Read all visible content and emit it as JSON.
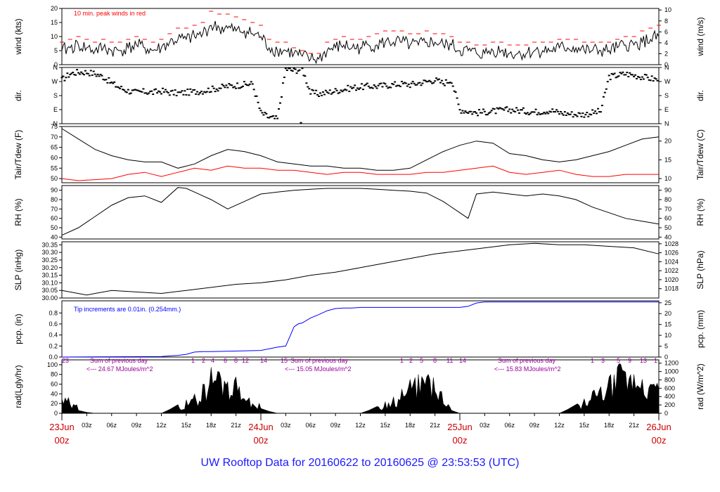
{
  "footer": {
    "title": "UW Rooftop Data for 20160622  to  20160625 @ 23:53:53  (UTC)"
  },
  "chart_data": [
    {
      "id": "wind",
      "type": "line",
      "ylabel_left": "wind (kts)",
      "ylabel_right": "wind (m/s)",
      "ylim": [
        0,
        20
      ],
      "yticks": [
        0,
        5,
        10,
        15,
        20
      ],
      "right_ylim": [
        0,
        10.3
      ],
      "right_yticks": [
        0,
        2,
        4,
        6,
        8,
        10
      ],
      "annotation": "10 min. peak winds in red",
      "series": [
        {
          "name": "wind speed (kts)",
          "color": "#000000",
          "x_hours": [
            0,
            1,
            2,
            3,
            4,
            5,
            6,
            7,
            8,
            9,
            10,
            11,
            12,
            13,
            14,
            15,
            16,
            17,
            18,
            19,
            20,
            21,
            22,
            23,
            24,
            25,
            26,
            27,
            28,
            29,
            30,
            31,
            32,
            33,
            34,
            35,
            36,
            37,
            38,
            39,
            40,
            41,
            42,
            43,
            44,
            45,
            46,
            47,
            48,
            49,
            50,
            51,
            52,
            53,
            54,
            55,
            56,
            57,
            58,
            59,
            60,
            61,
            62,
            63,
            64,
            65,
            66,
            67,
            68,
            69,
            70,
            71,
            72
          ],
          "values": [
            5,
            6,
            7,
            6,
            5,
            6,
            5,
            5,
            6,
            7,
            6,
            5,
            6,
            8,
            9,
            9,
            10,
            11,
            14,
            13,
            13,
            12,
            12,
            11,
            10,
            6,
            5,
            5,
            4,
            3,
            2,
            2,
            5,
            6,
            7,
            6,
            6,
            7,
            7,
            8,
            8,
            8,
            7,
            7,
            8,
            8,
            7,
            7,
            5,
            5,
            4,
            4,
            5,
            5,
            4,
            4,
            4,
            5,
            5,
            5,
            6,
            6,
            6,
            5,
            5,
            5,
            5,
            6,
            7,
            7,
            8,
            9,
            10
          ]
        },
        {
          "name": "10 min peak (kts)",
          "color": "#ff0000",
          "x_hours": [
            0,
            1,
            2,
            3,
            4,
            5,
            6,
            7,
            8,
            9,
            10,
            11,
            12,
            13,
            14,
            15,
            16,
            17,
            18,
            19,
            20,
            21,
            22,
            23,
            24,
            25,
            26,
            27,
            28,
            29,
            30,
            31,
            32,
            33,
            34,
            35,
            36,
            37,
            38,
            39,
            40,
            41,
            42,
            43,
            44,
            45,
            46,
            47,
            48,
            49,
            50,
            51,
            52,
            53,
            54,
            55,
            56,
            57,
            58,
            59,
            60,
            61,
            62,
            63,
            64,
            65,
            66,
            67,
            68,
            69,
            70,
            71,
            72
          ],
          "values": [
            8,
            9,
            10,
            9,
            8,
            9,
            8,
            8,
            9,
            10,
            9,
            8,
            9,
            11,
            13,
            13,
            14,
            15,
            19,
            18,
            18,
            17,
            16,
            15,
            14,
            9,
            8,
            8,
            6,
            5,
            4,
            4,
            8,
            9,
            10,
            9,
            9,
            10,
            11,
            12,
            12,
            12,
            11,
            11,
            12,
            11,
            11,
            10,
            8,
            8,
            7,
            7,
            8,
            8,
            7,
            7,
            7,
            8,
            8,
            8,
            9,
            9,
            9,
            8,
            8,
            8,
            8,
            9,
            10,
            10,
            12,
            13,
            14
          ]
        }
      ]
    },
    {
      "id": "dir",
      "type": "scatter",
      "ylabel_left": "dir.",
      "ylabel_right": "dir.",
      "ylim": [
        0,
        360
      ],
      "ytick_labels": [
        "N",
        "E",
        "S",
        "W",
        "N"
      ],
      "series": [
        {
          "name": "wind direction (deg)",
          "color": "#000000",
          "x_hours": [
            0,
            1,
            2,
            3,
            4,
            5,
            6,
            7,
            8,
            9,
            10,
            11,
            12,
            13,
            14,
            15,
            16,
            17,
            18,
            19,
            20,
            21,
            22,
            23,
            24,
            25,
            26,
            27,
            28,
            29,
            30,
            31,
            32,
            33,
            34,
            35,
            36,
            37,
            38,
            39,
            40,
            41,
            42,
            43,
            44,
            45,
            46,
            47,
            48,
            49,
            50,
            51,
            52,
            53,
            54,
            55,
            56,
            57,
            58,
            59,
            60,
            61,
            62,
            63,
            64,
            65,
            66,
            67,
            68,
            69,
            70,
            71,
            72
          ],
          "values": [
            280,
            320,
            330,
            330,
            320,
            300,
            260,
            230,
            210,
            200,
            205,
            200,
            210,
            200,
            195,
            200,
            205,
            210,
            220,
            230,
            240,
            245,
            250,
            255,
            70,
            40,
            30,
            350,
            340,
            350,
            200,
            190,
            200,
            210,
            220,
            230,
            235,
            240,
            240,
            245,
            250,
            255,
            250,
            260,
            270,
            280,
            260,
            280,
            90,
            80,
            70,
            75,
            80,
            85,
            90,
            85,
            80,
            75,
            80,
            85,
            70,
            65,
            60,
            60,
            70,
            80,
            300,
            310,
            320,
            310,
            300,
            290,
            280
          ]
        }
      ]
    },
    {
      "id": "temp",
      "type": "line",
      "ylabel_left": "Tair/Tdew (F)",
      "ylabel_right": "Tair/Tdew (C)",
      "ylim": [
        48,
        75
      ],
      "yticks": [
        50,
        55,
        60,
        65,
        70,
        75
      ],
      "right_ylim_c": [
        8.9,
        23.9
      ],
      "right_yticks": [
        10,
        15,
        20
      ],
      "series": [
        {
          "name": "Tair (F)",
          "color": "#000000",
          "x_hours": [
            0,
            2,
            4,
            6,
            8,
            10,
            12,
            14,
            16,
            18,
            20,
            22,
            24,
            26,
            28,
            30,
            32,
            34,
            36,
            38,
            40,
            42,
            44,
            46,
            48,
            50,
            52,
            54,
            56,
            58,
            60,
            62,
            64,
            66,
            68,
            70,
            72
          ],
          "values": [
            74,
            69,
            64,
            61,
            59,
            58,
            58,
            55,
            57,
            61,
            64,
            63,
            61,
            58,
            57,
            56,
            56,
            55,
            55,
            54,
            54,
            55,
            59,
            63,
            66,
            68,
            67,
            62,
            61,
            59,
            58,
            59,
            61,
            63,
            66,
            69,
            70
          ]
        },
        {
          "name": "Tdew (F)",
          "color": "#ff0000",
          "x_hours": [
            0,
            2,
            4,
            6,
            8,
            10,
            12,
            14,
            16,
            18,
            20,
            22,
            24,
            26,
            28,
            30,
            32,
            34,
            36,
            38,
            40,
            42,
            44,
            46,
            48,
            50,
            52,
            54,
            56,
            58,
            60,
            62,
            64,
            66,
            68,
            70,
            72
          ],
          "values": [
            50,
            49,
            49.5,
            50,
            52,
            53,
            51,
            53,
            55,
            54,
            56,
            55,
            55,
            54,
            54,
            53,
            52,
            53,
            53,
            52,
            52,
            52,
            53,
            53,
            54,
            55,
            56,
            53,
            52,
            53,
            54,
            52,
            51,
            51,
            52,
            52,
            52
          ]
        }
      ]
    },
    {
      "id": "rh",
      "type": "line",
      "ylabel_left": "RH (%)",
      "ylabel_right": "RH (%)",
      "ylim": [
        38,
        95
      ],
      "yticks": [
        40,
        50,
        60,
        70,
        80,
        90
      ],
      "series": [
        {
          "name": "RH (%)",
          "color": "#000000",
          "x_hours": [
            0,
            2,
            4,
            6,
            8,
            10,
            12,
            14,
            15,
            16,
            17,
            18,
            20,
            22,
            24,
            26,
            28,
            30,
            32,
            34,
            36,
            38,
            40,
            42,
            44,
            46,
            48,
            49,
            50,
            52,
            54,
            56,
            58,
            60,
            62,
            64,
            66,
            68,
            70,
            72
          ],
          "values": [
            42,
            50,
            62,
            74,
            82,
            84,
            77,
            93,
            92,
            88,
            84,
            80,
            70,
            78,
            86,
            88,
            90,
            91,
            92,
            92,
            92,
            91,
            90,
            89,
            87,
            78,
            66,
            60,
            86,
            88,
            86,
            84,
            86,
            84,
            80,
            72,
            66,
            60,
            57,
            54
          ]
        }
      ]
    },
    {
      "id": "slp",
      "type": "line",
      "ylabel_left": "SLP (inHg)",
      "ylabel_right": "SLP (hPa)",
      "ylim": [
        30.0,
        30.37
      ],
      "yticks": [
        30.0,
        30.05,
        30.1,
        30.15,
        30.2,
        30.25,
        30.3,
        30.35
      ],
      "right_yticks": [
        1018,
        1020,
        1022,
        1024,
        1026,
        1028
      ],
      "series": [
        {
          "name": "SLP (inHg)",
          "color": "#000000",
          "x_hours": [
            0,
            3,
            6,
            9,
            12,
            15,
            18,
            21,
            24,
            27,
            30,
            33,
            36,
            39,
            42,
            45,
            48,
            51,
            54,
            57,
            60,
            63,
            66,
            69,
            72
          ],
          "values": [
            30.05,
            30.02,
            30.05,
            30.04,
            30.03,
            30.05,
            30.07,
            30.09,
            30.1,
            30.12,
            30.15,
            30.17,
            30.2,
            30.23,
            30.26,
            30.29,
            30.31,
            30.33,
            30.35,
            30.36,
            30.35,
            30.35,
            30.34,
            30.33,
            30.29
          ]
        }
      ]
    },
    {
      "id": "pcp",
      "type": "line",
      "ylabel_left": "pcp. (in)",
      "ylabel_right": "pcp. (mm)",
      "ylim": [
        0,
        1.02
      ],
      "yticks": [
        0.0,
        0.2,
        0.4,
        0.6,
        0.8
      ],
      "right_yticks": [
        0,
        5,
        10,
        15,
        20,
        25
      ],
      "annotation": "Tip increments are 0.01in. (0.254mm.)",
      "series": [
        {
          "name": "cumulative precipitation (in)",
          "color": "#0000ff",
          "x_hours": [
            0,
            12,
            13,
            14,
            15,
            16,
            17,
            18,
            24,
            25,
            26,
            27,
            28,
            28.5,
            29,
            30,
            31,
            32,
            33,
            34,
            35,
            36,
            48,
            49,
            50,
            51,
            52,
            72
          ],
          "values": [
            0,
            0.01,
            0.02,
            0.03,
            0.05,
            0.09,
            0.1,
            0.1,
            0.12,
            0.15,
            0.18,
            0.2,
            0.55,
            0.6,
            0.62,
            0.71,
            0.77,
            0.84,
            0.88,
            0.89,
            0.89,
            0.9,
            0.9,
            0.92,
            0.98,
            1.0,
            1.0,
            1.0
          ]
        }
      ]
    },
    {
      "id": "rad",
      "type": "area",
      "ylabel_left": "rad(Lgly/hr)",
      "ylabel_right": "rad (W/m^2)",
      "ylim": [
        0,
        110
      ],
      "yticks": [
        0,
        20,
        40,
        60,
        80,
        100
      ],
      "right_yticks": [
        0,
        200,
        400,
        600,
        800,
        1000,
        1200
      ],
      "annotations": [
        "Sum of previous day",
        "<--- 24.67 MJoules/m^2",
        "Sum of previous day",
        "<--- 15.05 MJoules/m^2",
        "Sum of previous day",
        "<--- 15.83 MJoules/m^2"
      ],
      "hour_marks": [
        "23",
        "1",
        "2",
        "4",
        "6",
        "8",
        "12",
        "14",
        "15",
        "1",
        "2",
        "5",
        "8",
        "11",
        "14",
        "1",
        "3",
        "5",
        "9",
        "13",
        "1"
      ],
      "series": [
        {
          "name": "solar radiation (Lgly/hr)",
          "color": "#000000",
          "x_hours": [
            0,
            1,
            2,
            3,
            4,
            12,
            13,
            14,
            15,
            16,
            17,
            18,
            19,
            20,
            21,
            22,
            23,
            24,
            25,
            26,
            36,
            37,
            38,
            39,
            40,
            41,
            42,
            43,
            44,
            45,
            46,
            47,
            48,
            49,
            50,
            60,
            61,
            62,
            63,
            64,
            65,
            66,
            67,
            68,
            69,
            70,
            71,
            72
          ],
          "values": [
            30,
            18,
            6,
            2,
            0,
            0,
            8,
            18,
            28,
            40,
            60,
            95,
            85,
            65,
            75,
            30,
            20,
            10,
            4,
            0,
            0,
            6,
            14,
            24,
            34,
            50,
            70,
            80,
            75,
            45,
            20,
            6,
            0,
            0,
            0,
            0,
            8,
            18,
            30,
            45,
            55,
            75,
            95,
            85,
            80,
            70,
            60,
            50
          ]
        }
      ]
    }
  ],
  "time_axis": {
    "small_labels": [
      "03z",
      "06z",
      "09z",
      "12z",
      "15z",
      "18z",
      "21z",
      "03z",
      "06z",
      "09z",
      "12z",
      "15z",
      "18z",
      "21z",
      "03z",
      "06z",
      "09z",
      "12z",
      "15z",
      "18z",
      "21z"
    ],
    "day_labels": [
      {
        "date": "23Jun",
        "hour": "00z"
      },
      {
        "date": "24Jun",
        "hour": "00z"
      },
      {
        "date": "25Jun",
        "hour": "00z"
      },
      {
        "date": "26Jun",
        "hour": "00z"
      }
    ],
    "range_hours": [
      0,
      72
    ]
  }
}
